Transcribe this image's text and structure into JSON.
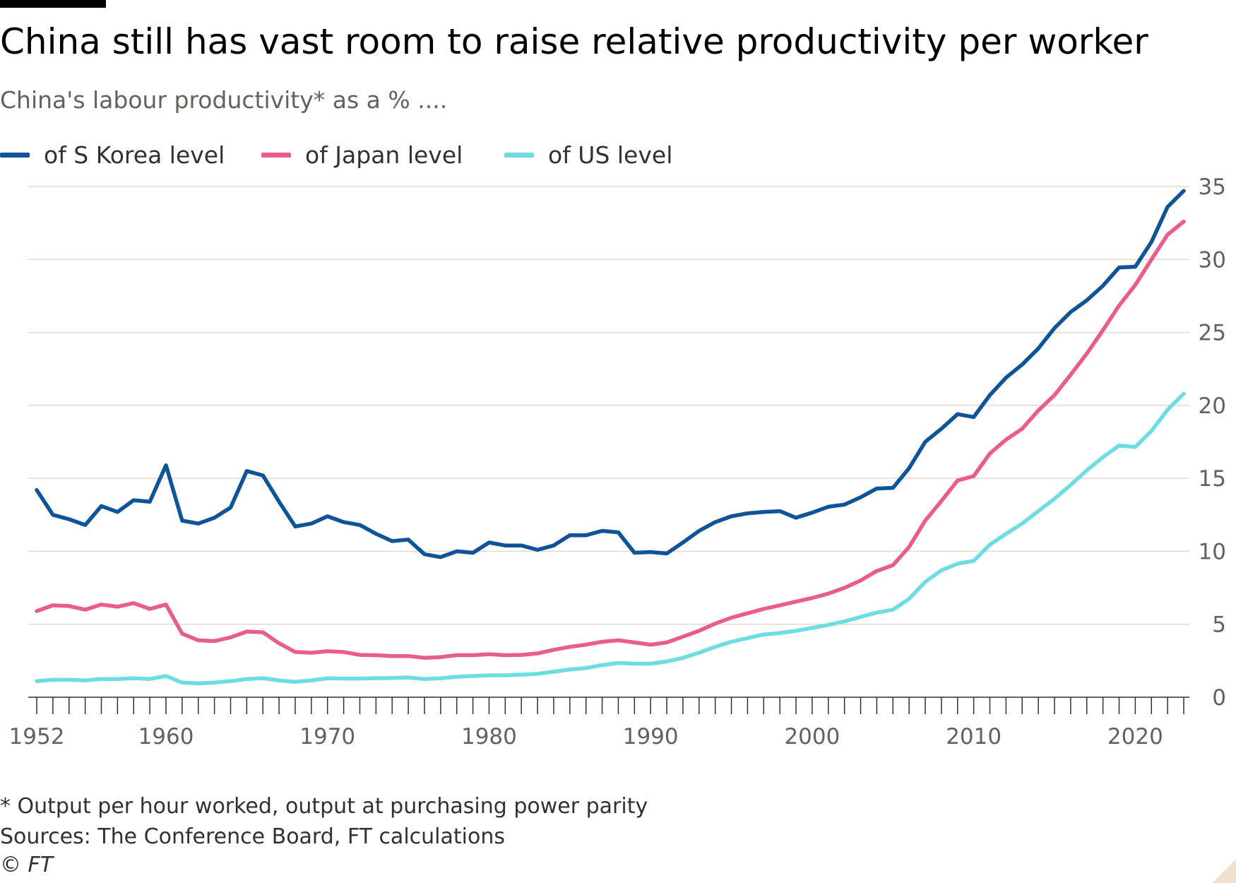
{
  "chart_data": {
    "type": "line",
    "title": "China still has vast room to raise relative productivity per worker",
    "subtitle": "China's labour productivity* as a % ....",
    "xlabel": "",
    "ylabel": "",
    "x_tick_labels": [
      "1952",
      "1960",
      "1970",
      "1980",
      "1990",
      "2000",
      "2010",
      "2020"
    ],
    "y_tick_labels": [
      "0",
      "5",
      "10",
      "15",
      "20",
      "25",
      "30",
      "35"
    ],
    "x_ticks": [
      1952,
      1960,
      1970,
      1980,
      1990,
      2000,
      2010,
      2020
    ],
    "y_ticks": [
      0,
      5,
      10,
      15,
      20,
      25,
      30,
      35
    ],
    "xlim": [
      1952,
      2023
    ],
    "ylim": [
      0,
      35
    ],
    "grid": true,
    "legend_position": "top",
    "series": [
      {
        "name": "of S Korea level",
        "color": "#0f5499",
        "x": [
          1952,
          1953,
          1954,
          1955,
          1956,
          1957,
          1958,
          1959,
          1960,
          1961,
          1962,
          1963,
          1964,
          1965,
          1966,
          1967,
          1968,
          1969,
          1970,
          1971,
          1972,
          1973,
          1974,
          1975,
          1976,
          1977,
          1978,
          1979,
          1980,
          1981,
          1982,
          1983,
          1984,
          1985,
          1986,
          1987,
          1988,
          1989,
          1990,
          1991,
          1992,
          1993,
          1994,
          1995,
          1996,
          1997,
          1998,
          1999,
          2000,
          2001,
          2002,
          2003,
          2004,
          2005,
          2006,
          2007,
          2008,
          2009,
          2010,
          2011,
          2012,
          2013,
          2014,
          2015,
          2016,
          2017,
          2018,
          2019,
          2020,
          2021,
          2022,
          2023
        ],
        "values": [
          14.2,
          12.5,
          12.2,
          11.8,
          13.1,
          12.7,
          13.5,
          13.4,
          15.9,
          12.1,
          11.9,
          12.3,
          13.0,
          15.5,
          15.2,
          13.4,
          11.7,
          11.9,
          12.4,
          12.0,
          11.8,
          11.2,
          10.7,
          10.8,
          9.8,
          9.6,
          10.0,
          9.9,
          10.6,
          10.4,
          10.4,
          10.1,
          10.4,
          11.1,
          11.1,
          11.4,
          11.3,
          9.9,
          9.95,
          9.85,
          10.6,
          11.4,
          12.0,
          12.4,
          12.6,
          12.7,
          12.75,
          12.3,
          12.65,
          13.05,
          13.2,
          13.7,
          14.3,
          14.35,
          15.7,
          17.5,
          18.4,
          19.4,
          19.2,
          20.7,
          21.9,
          22.8,
          23.9,
          25.3,
          26.4,
          27.2,
          28.2,
          29.45,
          29.5,
          31.2,
          33.6,
          34.7
        ]
      },
      {
        "name": "of Japan level",
        "color": "#e95d8c",
        "x": [
          1952,
          1953,
          1954,
          1955,
          1956,
          1957,
          1958,
          1959,
          1960,
          1961,
          1962,
          1963,
          1964,
          1965,
          1966,
          1967,
          1968,
          1969,
          1970,
          1971,
          1972,
          1973,
          1974,
          1975,
          1976,
          1977,
          1978,
          1979,
          1980,
          1981,
          1982,
          1983,
          1984,
          1985,
          1986,
          1987,
          1988,
          1989,
          1990,
          1991,
          1992,
          1993,
          1994,
          1995,
          1996,
          1997,
          1998,
          1999,
          2000,
          2001,
          2002,
          2003,
          2004,
          2005,
          2006,
          2007,
          2008,
          2009,
          2010,
          2011,
          2012,
          2013,
          2014,
          2015,
          2016,
          2017,
          2018,
          2019,
          2020,
          2021,
          2022,
          2023
        ],
        "values": [
          5.9,
          6.3,
          6.25,
          6.0,
          6.35,
          6.2,
          6.45,
          6.05,
          6.35,
          4.35,
          3.9,
          3.85,
          4.1,
          4.5,
          4.45,
          3.7,
          3.1,
          3.05,
          3.15,
          3.1,
          2.9,
          2.88,
          2.82,
          2.82,
          2.7,
          2.75,
          2.88,
          2.88,
          2.95,
          2.88,
          2.9,
          3.0,
          3.25,
          3.45,
          3.6,
          3.8,
          3.9,
          3.75,
          3.6,
          3.75,
          4.15,
          4.55,
          5.05,
          5.45,
          5.75,
          6.05,
          6.3,
          6.55,
          6.8,
          7.1,
          7.5,
          8.0,
          8.65,
          9.05,
          10.3,
          12.1,
          13.45,
          14.85,
          15.15,
          16.7,
          17.65,
          18.4,
          19.65,
          20.7,
          22.1,
          23.55,
          25.15,
          26.85,
          28.25,
          30.0,
          31.7,
          32.6
        ]
      },
      {
        "name": "of US level",
        "color": "#6ddce3",
        "x": [
          1952,
          1953,
          1954,
          1955,
          1956,
          1957,
          1958,
          1959,
          1960,
          1961,
          1962,
          1963,
          1964,
          1965,
          1966,
          1967,
          1968,
          1969,
          1970,
          1971,
          1972,
          1973,
          1974,
          1975,
          1976,
          1977,
          1978,
          1979,
          1980,
          1981,
          1982,
          1983,
          1984,
          1985,
          1986,
          1987,
          1988,
          1989,
          1990,
          1991,
          1992,
          1993,
          1994,
          1995,
          1996,
          1997,
          1998,
          1999,
          2000,
          2001,
          2002,
          2003,
          2004,
          2005,
          2006,
          2007,
          2008,
          2009,
          2010,
          2011,
          2012,
          2013,
          2014,
          2015,
          2016,
          2017,
          2018,
          2019,
          2020,
          2021,
          2022,
          2023
        ],
        "values": [
          1.1,
          1.2,
          1.2,
          1.15,
          1.25,
          1.25,
          1.3,
          1.25,
          1.45,
          1.0,
          0.95,
          1.0,
          1.1,
          1.25,
          1.3,
          1.15,
          1.05,
          1.15,
          1.3,
          1.28,
          1.28,
          1.3,
          1.32,
          1.35,
          1.25,
          1.3,
          1.4,
          1.45,
          1.5,
          1.5,
          1.55,
          1.6,
          1.75,
          1.9,
          2.0,
          2.2,
          2.35,
          2.3,
          2.3,
          2.45,
          2.7,
          3.05,
          3.45,
          3.8,
          4.05,
          4.3,
          4.4,
          4.55,
          4.75,
          4.95,
          5.2,
          5.5,
          5.8,
          6.0,
          6.75,
          7.9,
          8.7,
          9.15,
          9.35,
          10.45,
          11.2,
          11.9,
          12.75,
          13.6,
          14.55,
          15.55,
          16.45,
          17.25,
          17.15,
          18.25,
          19.7,
          20.8
        ]
      }
    ],
    "footnote": "* Output per hour worked, output at purchasing power parity",
    "source": "Sources: The Conference Board, FT calculations",
    "copyright": "© FT"
  },
  "colors": {
    "background": "#ffffff",
    "gridline": "#e6d9ce",
    "axis": "#33302e",
    "text_muted": "#66605c",
    "corner_accent": "#f2dfce"
  }
}
